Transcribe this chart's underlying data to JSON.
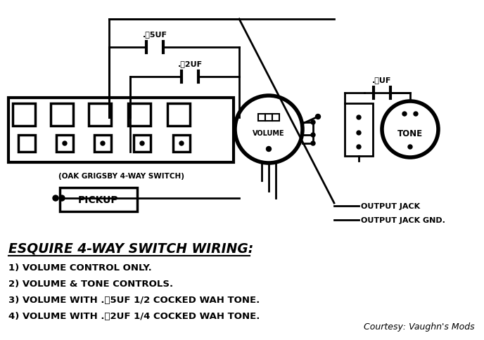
{
  "bg_color": "#ffffff",
  "line_color": "#000000",
  "title": "ESQUIRE 4-WAY SWITCH WIRING:",
  "items": [
    "1) VOLUME CONTROL ONLY.",
    "2) VOLUME & TONE CONTROLS.",
    "3) VOLUME WITH .5UF 1/2 COCKED WAH TONE.",
    "4) VOLUME WITH .2UF 1/4 COCKED WAH TONE."
  ],
  "courtesy": "Courtesy: Vaughn's Mods",
  "cap1_label": ".5UF",
  "cap2_label": ".2UF",
  "cap3_label": ".অUF",
  "volume_label": "VOLUME",
  "tone_label": "TONE",
  "switch_label": "(OAK GRIGSBY 4-WAY SWITCH)",
  "pickup_label": "PICKUP",
  "output_jack_label": "OUTPUT JACK",
  "output_jack_gnd_label": "OUTPUT JACK GND."
}
